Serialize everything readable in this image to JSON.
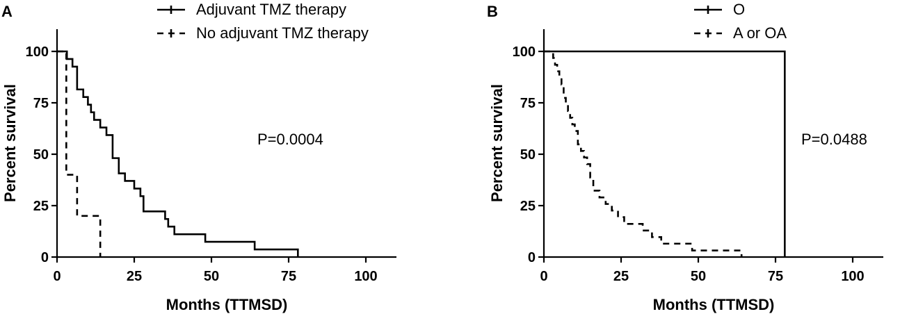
{
  "chart_data": [
    {
      "type": "line",
      "panel": "A",
      "xlabel": "Months (TTMSD)",
      "ylabel": "Percent survival",
      "xlim": [
        0,
        110
      ],
      "ylim": [
        0,
        110
      ],
      "xticks": [
        "0",
        "25",
        "50",
        "75",
        "100"
      ],
      "yticks": [
        "0",
        "25",
        "50",
        "75",
        "100"
      ],
      "legend_position": "top",
      "annotation": "P=0.0004",
      "series": [
        {
          "name": "Adjuvant TMZ therapy",
          "style": "solid",
          "x": [
            0,
            3.2,
            5,
            6.5,
            8.5,
            10,
            11,
            12,
            14,
            16,
            18,
            20,
            22,
            25,
            27,
            28,
            35,
            36,
            38,
            48,
            64,
            78
          ],
          "y": [
            100,
            96.3,
            92.6,
            81.5,
            77.8,
            74.1,
            70.4,
            66.7,
            63,
            59.3,
            48.1,
            40.7,
            37,
            33.3,
            29.6,
            22.2,
            18.5,
            14.8,
            11.1,
            7.4,
            3.7,
            0
          ]
        },
        {
          "name": "No adjuvant TMZ therapy",
          "style": "dashed",
          "x": [
            0,
            3,
            6.5,
            14
          ],
          "y": [
            100,
            40,
            20,
            0
          ]
        }
      ]
    },
    {
      "type": "line",
      "panel": "B",
      "xlabel": "Months (TTMSD)",
      "ylabel": "Percent survival",
      "xlim": [
        0,
        110
      ],
      "ylim": [
        0,
        110
      ],
      "xticks": [
        "0",
        "25",
        "50",
        "75",
        "100"
      ],
      "yticks": [
        "0",
        "25",
        "50",
        "75",
        "100"
      ],
      "legend_position": "top",
      "annotation": "P=0.0488",
      "series": [
        {
          "name": "O",
          "style": "solid",
          "x": [
            0,
            78
          ],
          "y": [
            100,
            0
          ]
        },
        {
          "name": "A or OA",
          "style": "dashed",
          "x": [
            0,
            3,
            3.6,
            4.3,
            5,
            5.7,
            6.4,
            7.1,
            7.8,
            8.5,
            9.2,
            10,
            11,
            12,
            13,
            14,
            15,
            16,
            18,
            20,
            22,
            24,
            26,
            28,
            32,
            35,
            38,
            48,
            64
          ],
          "y": [
            100,
            96.8,
            93.5,
            90.3,
            87.1,
            83.9,
            77.4,
            74.2,
            71,
            67.7,
            64.5,
            61.3,
            54.8,
            51.6,
            48.4,
            45.2,
            38.7,
            32.3,
            29,
            25.8,
            22.6,
            19.4,
            16.1,
            16.1,
            12.9,
            9.7,
            6.5,
            3.2,
            0
          ]
        }
      ]
    }
  ]
}
